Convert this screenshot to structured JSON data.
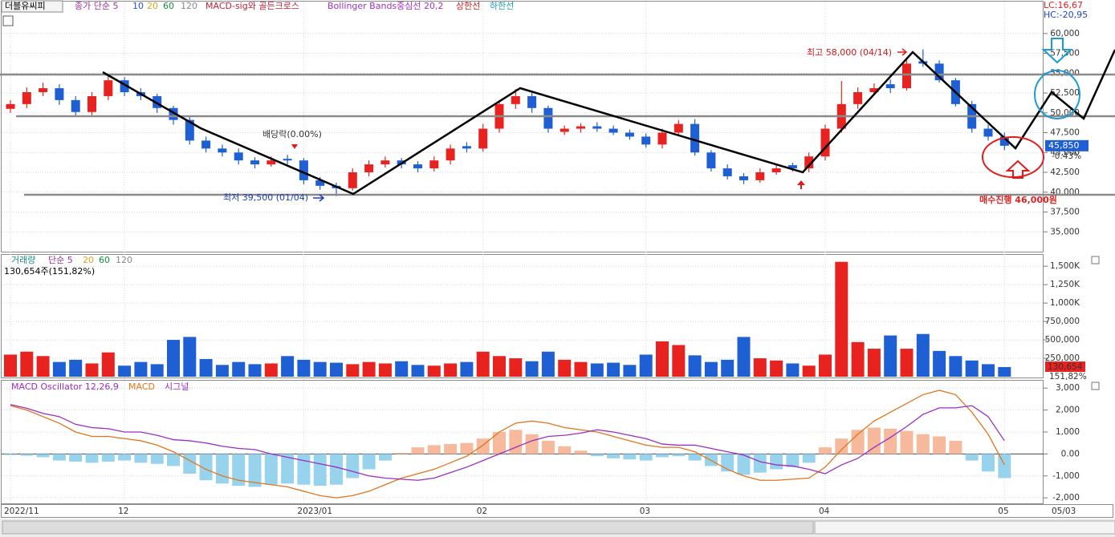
{
  "chart_data": [
    {
      "type": "candlestick",
      "title": "더블유씨피",
      "legend": [
        "종가 단순 5",
        "10",
        "20",
        "60",
        "120",
        "MACD-sig와 골든크로스",
        "Bollinger Bands중심선 20,2",
        "상한선",
        "하한선"
      ],
      "lc_label": "LC:16,67",
      "hc_label": "HC:-20,95",
      "categories": [
        "2022/11",
        null,
        null,
        null,
        null,
        null,
        null,
        "12",
        null,
        null,
        null,
        null,
        null,
        null,
        null,
        null,
        null,
        null,
        "2023/01",
        null,
        null,
        null,
        null,
        null,
        null,
        null,
        null,
        null,
        null,
        "02",
        null,
        null,
        null,
        null,
        null,
        null,
        null,
        null,
        null,
        "03",
        null,
        null,
        null,
        null,
        null,
        null,
        null,
        null,
        null,
        null,
        "04",
        null,
        null,
        null,
        null,
        null,
        null,
        null,
        null,
        null,
        null,
        "05"
      ],
      "x_end_label": "05/03",
      "open": [
        50500,
        51100,
        52600,
        53100,
        51600,
        50100,
        52100,
        54100,
        52600,
        52100,
        50600,
        49100,
        46500,
        45500,
        45000,
        44000,
        43500,
        44200,
        44000,
        41500,
        40800,
        40500,
        42500,
        43500,
        44000,
        43500,
        43000,
        44000,
        45800,
        45500,
        48000,
        51100,
        52100,
        50600,
        47600,
        48000,
        48300,
        48000,
        47500,
        47000,
        46000,
        47500,
        48600,
        45000,
        43000,
        42000,
        41500,
        42500,
        43400,
        43000,
        44500,
        48000,
        51100,
        52600,
        53600,
        53100,
        56500,
        56200,
        54100,
        51100,
        48000,
        47000
      ],
      "high": [
        51600,
        53200,
        53800,
        53600,
        52100,
        52600,
        54900,
        54500,
        53100,
        52400,
        50900,
        49600,
        47000,
        46000,
        45500,
        44400,
        44500,
        44700,
        44300,
        41900,
        41200,
        43000,
        44000,
        44500,
        44300,
        43900,
        44500,
        46000,
        46300,
        48600,
        51600,
        53000,
        52500,
        50900,
        48400,
        48700,
        48800,
        48400,
        47900,
        47400,
        48000,
        49100,
        49200,
        45300,
        43500,
        42400,
        43000,
        43500,
        43700,
        45000,
        48500,
        54000,
        53200,
        53700,
        54200,
        57000,
        58000,
        56600,
        54400,
        51500,
        48500,
        47500
      ],
      "low": [
        50000,
        50600,
        52100,
        51000,
        49500,
        49700,
        51600,
        52100,
        51600,
        50000,
        48500,
        46000,
        45000,
        44500,
        43500,
        43000,
        43200,
        43500,
        41000,
        40300,
        39500,
        40200,
        42000,
        43100,
        43000,
        42500,
        42600,
        43500,
        45000,
        45100,
        47500,
        50500,
        50000,
        47500,
        47200,
        47500,
        47600,
        47200,
        46600,
        45600,
        45500,
        47100,
        44600,
        42600,
        41600,
        41000,
        41200,
        42200,
        42600,
        42500,
        44000,
        47500,
        50500,
        52200,
        52500,
        52800,
        55800,
        53800,
        50800,
        47500,
        46500,
        45300
      ],
      "close": [
        51100,
        52600,
        53100,
        51600,
        50100,
        52100,
        54100,
        52600,
        52100,
        50600,
        49100,
        46500,
        45500,
        45000,
        44000,
        43500,
        44000,
        44000,
        41500,
        40800,
        40500,
        42500,
        43500,
        44000,
        43500,
        43000,
        44000,
        45500,
        45500,
        48000,
        51100,
        52100,
        50600,
        48000,
        48000,
        48300,
        48000,
        47500,
        47000,
        46000,
        47500,
        48600,
        45000,
        43000,
        42000,
        41500,
        42500,
        43000,
        43000,
        44500,
        48000,
        51100,
        52600,
        53100,
        53100,
        56200,
        56200,
        54100,
        51100,
        48000,
        47000,
        45850
      ],
      "up_color": "#e8231f",
      "down_color": "#1f5fd4",
      "ylim": [
        32500,
        62500
      ],
      "yticks": [
        {
          "value": 60000,
          "label": "60,000"
        },
        {
          "value": 57500,
          "label": "57,500"
        },
        {
          "value": 55000,
          "label": "55,000"
        },
        {
          "value": 52500,
          "label": "52,500"
        },
        {
          "value": 50000,
          "label": "50,000"
        },
        {
          "value": 47500,
          "label": "47,500"
        },
        {
          "value": 45000,
          "label": "45,000"
        },
        {
          "value": 42500,
          "label": "42,500"
        },
        {
          "value": 40000,
          "label": "40,000"
        },
        {
          "value": 37500,
          "label": "37,500"
        },
        {
          "value": 35000,
          "label": "35,000"
        }
      ],
      "current": {
        "value": 45850,
        "label": "45,850"
      },
      "change_label": "-0.43%",
      "annotations": {
        "high": "최고 58,000 (04/14)",
        "low": "최저 39,500 (01/04)",
        "dividend": "배당락(0.00%)",
        "buy": "매수진행 46,000원"
      },
      "grid": true
    },
    {
      "type": "bar",
      "legend": [
        "거래량",
        "단순 5",
        "20",
        "60",
        "120"
      ],
      "subtitle": "130,654주(151,82%)",
      "values": [
        300000,
        340000,
        280000,
        200000,
        230000,
        180000,
        330000,
        150000,
        200000,
        170000,
        500000,
        540000,
        240000,
        160000,
        200000,
        170000,
        180000,
        280000,
        230000,
        200000,
        190000,
        170000,
        200000,
        180000,
        210000,
        160000,
        150000,
        180000,
        200000,
        340000,
        280000,
        250000,
        210000,
        340000,
        230000,
        200000,
        180000,
        190000,
        160000,
        300000,
        480000,
        430000,
        290000,
        200000,
        230000,
        540000,
        250000,
        220000,
        180000,
        150000,
        300000,
        1560000,
        470000,
        380000,
        560000,
        380000,
        580000,
        350000,
        280000,
        220000,
        170000,
        130654
      ],
      "current_label": "130,654",
      "ratio_label": "151,82%",
      "ylim": [
        0,
        1600000
      ],
      "yticks": [
        {
          "value": 1500000,
          "label": "1,500K"
        },
        {
          "value": 1250000,
          "label": "1,250K"
        },
        {
          "value": 1000000,
          "label": "1,000K"
        },
        {
          "value": 750000,
          "label": "750,000"
        },
        {
          "value": 500000,
          "label": "500,000"
        },
        {
          "value": 250000,
          "label": "250,000"
        }
      ],
      "grid": true
    },
    {
      "type": "macd",
      "ylim": [
        -2250,
        3300
      ],
      "yticks": [
        {
          "value": 3000,
          "label": "3,000"
        },
        {
          "value": 2000,
          "label": "2,000"
        },
        {
          "value": 1000,
          "label": "1,000"
        },
        {
          "value": 0,
          "label": "0.00"
        },
        {
          "value": -1000,
          "label": "-1,000"
        },
        {
          "value": -2000,
          "label": "-2,000"
        }
      ],
      "series": [
        {
          "name": "MACD Oscillator 12,26,9",
          "color": "#9a2fc0",
          "pos_color": "#f7b99b",
          "neg_color": "#98d3ee",
          "values": [
            -50,
            -80,
            -150,
            -300,
            -350,
            -400,
            -350,
            -300,
            -400,
            -450,
            -550,
            -900,
            -1200,
            -1350,
            -1450,
            -1500,
            -1400,
            -1350,
            -1400,
            -1450,
            -1400,
            -1100,
            -700,
            -300,
            50,
            300,
            400,
            450,
            500,
            700,
            1000,
            1100,
            900,
            600,
            350,
            150,
            -100,
            -200,
            -250,
            -300,
            -150,
            -100,
            -300,
            -550,
            -800,
            -950,
            -850,
            -700,
            -600,
            -400,
            300,
            700,
            1100,
            1200,
            1150,
            1050,
            900,
            800,
            600,
            -300,
            -800,
            -1100
          ]
        },
        {
          "name": "MACD",
          "color": "#e0751c",
          "values": [
            2200,
            2000,
            1700,
            1400,
            1000,
            800,
            800,
            700,
            600,
            400,
            100,
            -300,
            -700,
            -1000,
            -1200,
            -1300,
            -1400,
            -1500,
            -1700,
            -1900,
            -2000,
            -1900,
            -1700,
            -1400,
            -1100,
            -900,
            -700,
            -400,
            -100,
            400,
            1000,
            1400,
            1500,
            1400,
            1200,
            1100,
            1000,
            800,
            600,
            400,
            300,
            300,
            100,
            -300,
            -700,
            -1000,
            -1200,
            -1200,
            -1150,
            -1100,
            -600,
            200,
            900,
            1500,
            1900,
            2300,
            2700,
            2900,
            2700,
            1900,
            900,
            -500
          ]
        },
        {
          "name": "시그널",
          "color": "#9a2fc0",
          "values": [
            2250,
            2080,
            1850,
            1700,
            1350,
            1200,
            1150,
            1000,
            1000,
            850,
            650,
            600,
            500,
            350,
            250,
            200,
            0,
            -150,
            -300,
            -450,
            -600,
            -800,
            -1000,
            -1100,
            -1150,
            -1200,
            -1100,
            -850,
            -600,
            -300,
            0,
            300,
            600,
            800,
            850,
            950,
            1100,
            1000,
            850,
            700,
            450,
            400,
            400,
            250,
            100,
            -50,
            -350,
            -500,
            -550,
            -700,
            -900,
            -500,
            -200,
            300,
            750,
            1250,
            1800,
            2100,
            2100,
            2200,
            1700,
            600
          ]
        }
      ],
      "grid": true
    }
  ]
}
